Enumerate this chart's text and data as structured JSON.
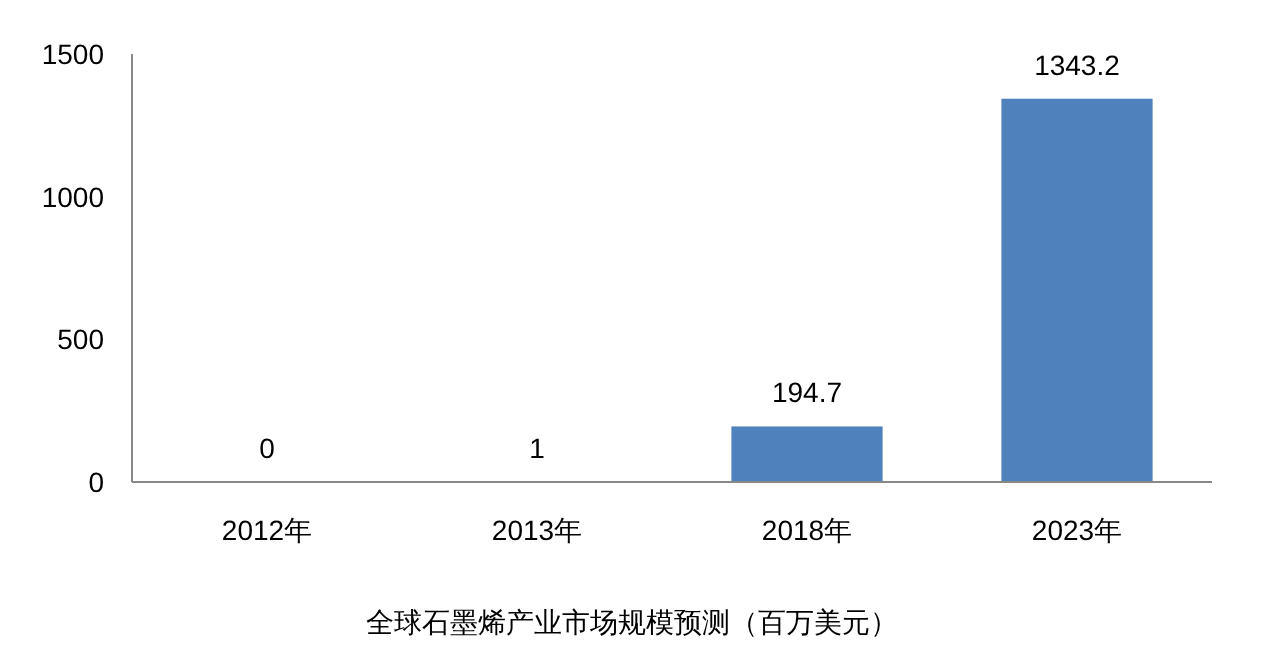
{
  "chart_data": {
    "type": "bar",
    "xlabel": "全球石墨烯产业市场规模预测（百万美元）",
    "categories": [
      "2012年",
      "2013年",
      "2018年",
      "2023年"
    ],
    "values": [
      0,
      1,
      194.7,
      1343.2
    ],
    "color": "#4f81bd",
    "ylim": [
      0,
      1500
    ],
    "yticks": [
      0,
      500,
      1000,
      1500
    ],
    "data_labels": true
  }
}
